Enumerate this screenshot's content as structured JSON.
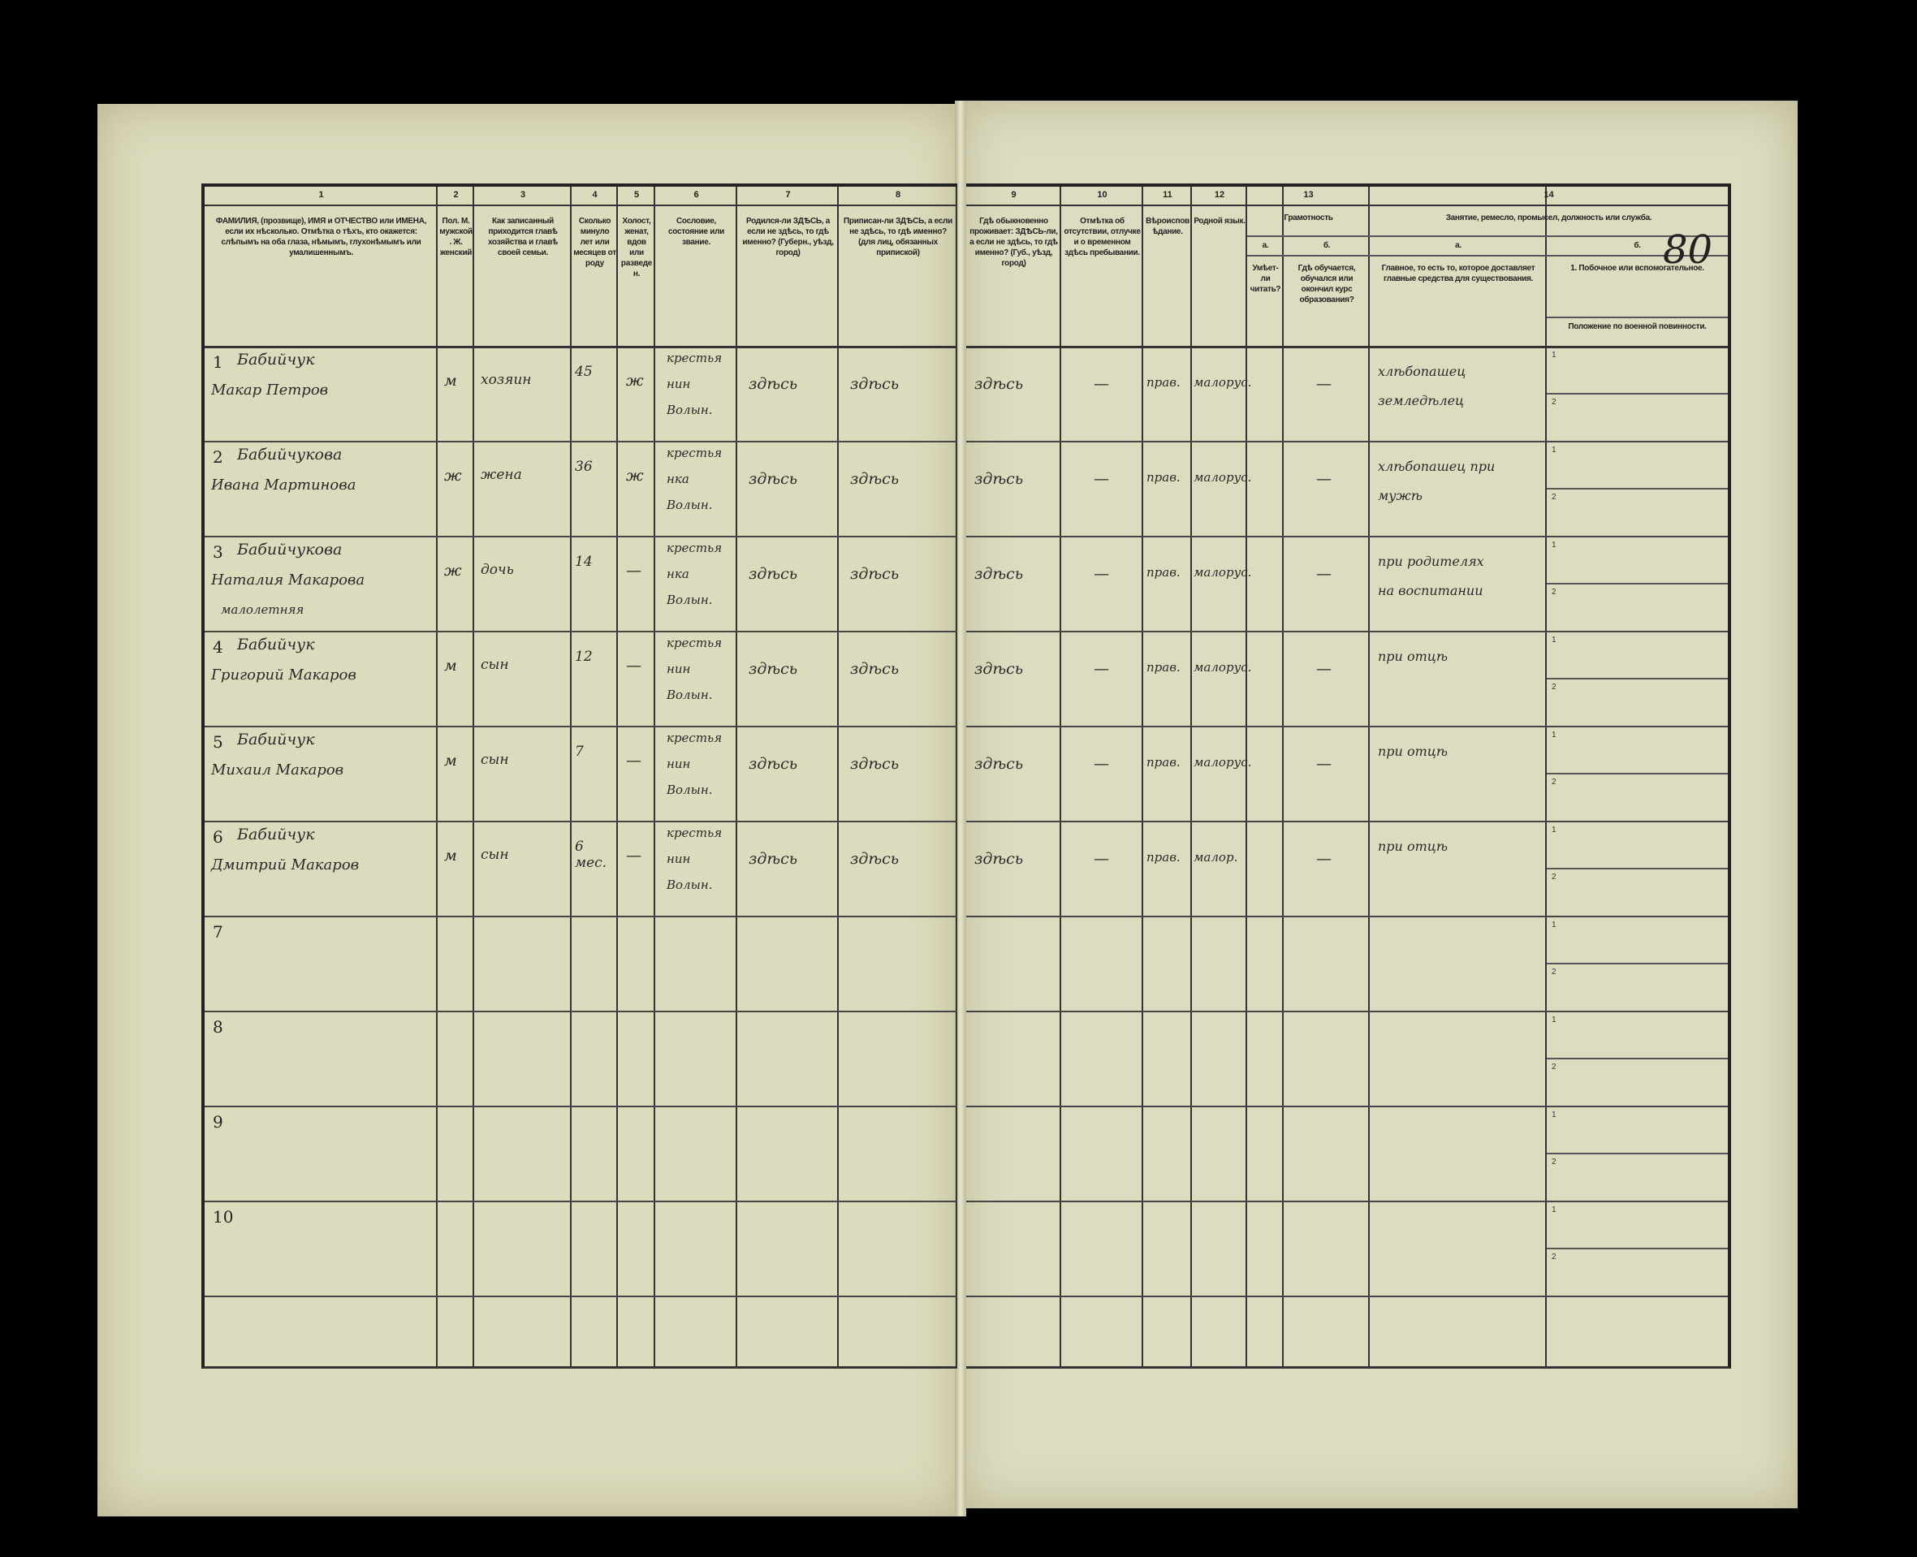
{
  "sheet_number": "80",
  "left_columns": [
    {
      "num": "1",
      "title": "ФАМИЛИЯ, (прозвище), ИМЯ и ОТЧЕСТВО или ИМЕНА, если их нѣсколько. Отмѣтка о тѣхъ, кто окажется: слѣпымъ на оба глаза, нѣмымъ, глухонѣмымъ или умалишеннымъ."
    },
    {
      "num": "2",
      "title": "Пол. М. мужской. Ж. женский"
    },
    {
      "num": "3",
      "title": "Как записанный приходится главѣ хозяйства и главѣ своей семьи."
    },
    {
      "num": "4",
      "title": "Сколько минуло лет или месяцев от роду"
    },
    {
      "num": "5",
      "title": "Холост, женат, вдов или разведен."
    },
    {
      "num": "6",
      "title": "Сословие, состояние или звание."
    },
    {
      "num": "7",
      "title": "Родился-ли ЗДѢСЬ, а если не здѣсь, то гдѣ именно? (Губерн., уѣзд, город)"
    },
    {
      "num": "8",
      "title": "Приписан-ли ЗДѢСЬ, а если не здѣсь, то гдѣ именно? (для лиц, обязанных припиской)"
    }
  ],
  "right_columns": [
    {
      "num": "9",
      "title": "Гдѣ обыкновенно проживает: ЗДѢСЬ-ли, а если не здѣсь, то гдѣ именно? (Губ., уѣзд, город)"
    },
    {
      "num": "10",
      "title": "Отмѣтка об отсутствии, отлучке и о временном здѣсь пребывании."
    },
    {
      "num": "11",
      "title": "Вѣроисповѣдание."
    },
    {
      "num": "12",
      "title": "Родной язык."
    },
    {
      "num": "13",
      "title": "Грамотность",
      "subs": [
        {
          "letter": "а.",
          "title": "Умѣет-ли читать?"
        },
        {
          "letter": "б.",
          "title": "Гдѣ обучается, обучался или окончил курс образования?"
        }
      ]
    },
    {
      "num": "14",
      "title": "Занятие, ремесло, промысел, должность или служба.",
      "subs": [
        {
          "letter": "а.",
          "title": "Главное, то есть то, которое доставляет главные средства для существования."
        },
        {
          "letter": "б.",
          "title": "1. Побочное или вспомогательное."
        }
      ],
      "note": "Положение по военной повинности."
    }
  ],
  "rows": [
    {
      "n": "1",
      "name1": "Бабийчук",
      "name2": "Макар Петров",
      "sex": "м",
      "relation": "хозяин",
      "age": "45",
      "marital": "ж",
      "estate": [
        "крестья",
        "нин",
        "Волын."
      ],
      "born": "здѣсь",
      "registered": "здѣсь",
      "resides": "здѣсь",
      "absence": "—",
      "religion": "прав.",
      "language": "малорус.",
      "literate": "",
      "schooling": "—",
      "occupation": [
        "хлѣбопашец",
        "земледѣлец"
      ]
    },
    {
      "n": "2",
      "name1": "Бабийчукова",
      "name2": "Ивана Мартинова",
      "sex": "ж",
      "relation": "жена",
      "age": "36",
      "marital": "ж",
      "estate": [
        "крестья",
        "нка",
        "Волын."
      ],
      "born": "здѣсь",
      "registered": "здѣсь",
      "resides": "здѣсь",
      "absence": "—",
      "religion": "прав.",
      "language": "малорус.",
      "literate": "",
      "schooling": "—",
      "occupation": [
        "хлѣбопашец при",
        "мужѣ"
      ]
    },
    {
      "n": "3",
      "name1": "Бабийчукова",
      "name2": "Наталия Макарова",
      "name3": "малолетняя",
      "sex": "ж",
      "relation": "дочь",
      "age": "14",
      "marital": "—",
      "estate": [
        "крестья",
        "нка",
        "Волын."
      ],
      "born": "здѣсь",
      "registered": "здѣсь",
      "resides": "здѣсь",
      "absence": "—",
      "religion": "прав.",
      "language": "малорус.",
      "literate": "",
      "schooling": "—",
      "occupation": [
        "при родителях",
        "на воспитании"
      ]
    },
    {
      "n": "4",
      "name1": "Бабийчук",
      "name2": "Григорий Макаров",
      "sex": "м",
      "relation": "сын",
      "age": "12",
      "marital": "—",
      "estate": [
        "крестья",
        "нин",
        "Волын."
      ],
      "born": "здѣсь",
      "registered": "здѣсь",
      "resides": "здѣсь",
      "absence": "—",
      "religion": "прав.",
      "language": "малорус.",
      "literate": "",
      "schooling": "—",
      "occupation": [
        "при отцѣ"
      ]
    },
    {
      "n": "5",
      "name1": "Бабийчук",
      "name2": "Михаил Макаров",
      "sex": "м",
      "relation": "сын",
      "age": "7",
      "marital": "—",
      "estate": [
        "крестья",
        "нин",
        "Волын."
      ],
      "born": "здѣсь",
      "registered": "здѣсь",
      "resides": "здѣсь",
      "absence": "—",
      "religion": "прав.",
      "language": "малорус.",
      "literate": "",
      "schooling": "—",
      "occupation": [
        "при отцѣ"
      ]
    },
    {
      "n": "6",
      "name1": "Бабийчук",
      "name2": "Дмитрий Макаров",
      "sex": "м",
      "relation": "сын",
      "age": "6 мес.",
      "marital": "—",
      "estate": [
        "крестья",
        "нин",
        "Волын."
      ],
      "born": "здѣсь",
      "registered": "здѣсь",
      "resides": "здѣсь",
      "absence": "—",
      "religion": "прав.",
      "language": "малор.",
      "literate": "",
      "schooling": "—",
      "occupation": [
        "при отцѣ"
      ]
    },
    {
      "n": "7"
    },
    {
      "n": "8"
    },
    {
      "n": "9"
    },
    {
      "n": "10"
    }
  ]
}
